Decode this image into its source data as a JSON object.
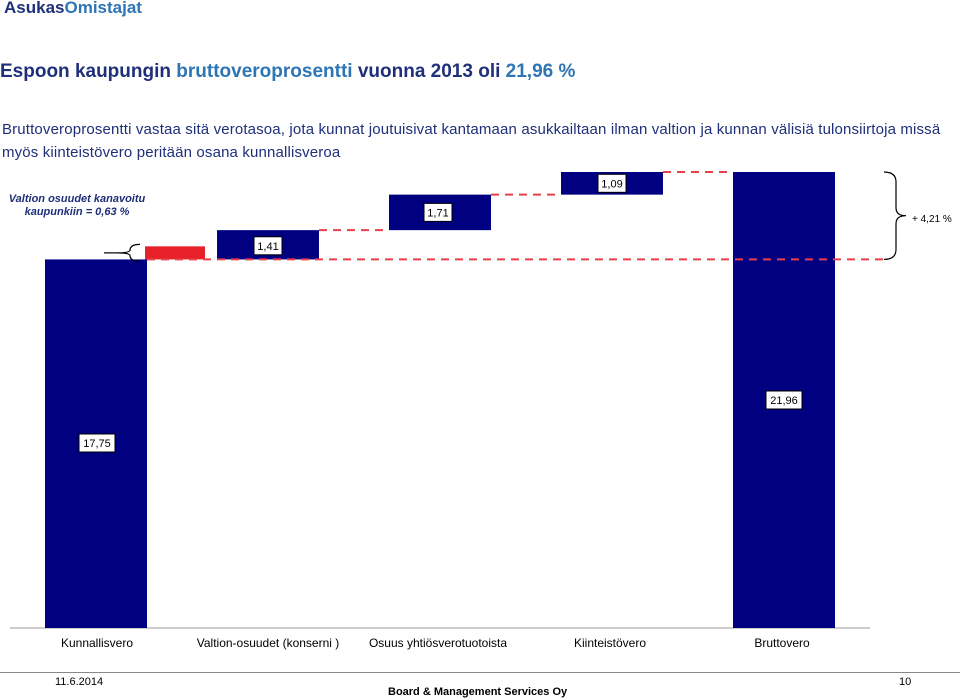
{
  "header": {
    "brand_part1": "Asukas",
    "brand_part2": "Omistajat"
  },
  "slide": {
    "title_part1": "Espoon kaupungin ",
    "title_highlight1": "bruttoveroprosentti",
    "title_part2": " vuonna 2013 oli ",
    "title_highlight2": "21,96 %",
    "description": "Bruttoveroprosentti vastaa sitä verotasoa, jota kunnat joutuisivat kantamaan asukkailtaan ilman valtion ja kunnan välisiä tulonsiirtoja missä myös kiinteistövero peritään osana kunnallisveroa",
    "note": "Valtion osuudet kanavoitu kaupunkiin = 0,63 %",
    "total_increase_label": "+ 4,21 %"
  },
  "colors": {
    "bar": "#000080",
    "highlight": "#e8202a",
    "dash": "#e8414b",
    "title": "#1f2f7a",
    "accent": "#2e75b6"
  },
  "chart_data": {
    "type": "bar",
    "subtype": "waterfall",
    "categories": [
      "Kunnallisvero",
      "Valtion-osuudet (konserni )",
      "Osuus yhtiösverotuotoista",
      "Kiinteistövero",
      "Bruttovero"
    ],
    "values": [
      17.75,
      1.41,
      1.71,
      1.09,
      21.96
    ],
    "data_labels": [
      "17,75",
      "1,41",
      "1,71",
      "1,09",
      "21,96"
    ],
    "highlight_value": 0.63,
    "bar_color": "#000080",
    "highlight_color": "#e8202a"
  },
  "footer": {
    "date": "11.6.2014",
    "company": "Board & Management Services Oy",
    "page": "10"
  }
}
